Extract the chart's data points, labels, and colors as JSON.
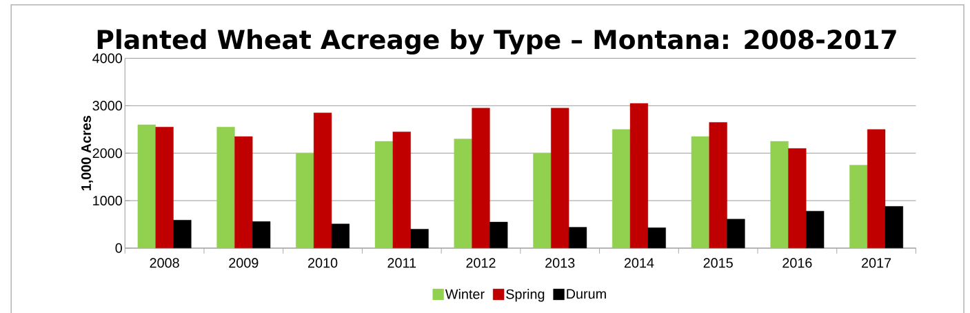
{
  "chart_data": {
    "type": "bar",
    "title": "Planted Wheat Acreage by Type – Montana: 2008-2017",
    "ylabel": "1,000 Acres",
    "categories": [
      "2008",
      "2009",
      "2010",
      "2011",
      "2012",
      "2013",
      "2014",
      "2015",
      "2016",
      "2017"
    ],
    "series": [
      {
        "name": "Winter",
        "color": "#92d050",
        "values": [
          2600,
          2550,
          2000,
          2250,
          2300,
          2000,
          2500,
          2350,
          2250,
          1750
        ]
      },
      {
        "name": "Spring",
        "color": "#c00000",
        "values": [
          2550,
          2350,
          2850,
          2450,
          2950,
          2950,
          3050,
          2650,
          2100,
          2500
        ]
      },
      {
        "name": "Durum",
        "color": "#000000",
        "values": [
          590,
          560,
          510,
          400,
          550,
          440,
          430,
          610,
          780,
          880
        ]
      }
    ],
    "ylim": [
      0,
      4000
    ],
    "yticks": [
      0,
      1000,
      2000,
      3000,
      4000
    ],
    "grid": "y",
    "legend": "bottom"
  }
}
